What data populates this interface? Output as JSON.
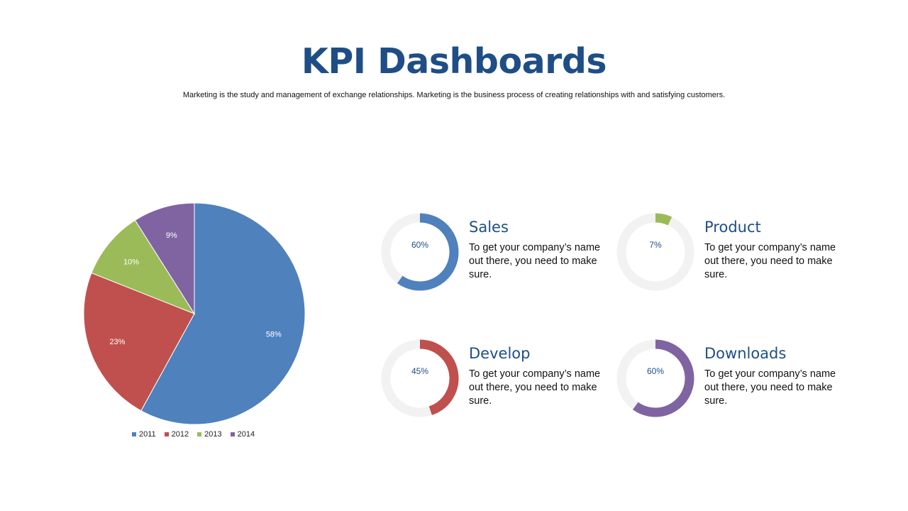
{
  "header": {
    "title": "KPI Dashboards",
    "subtitle": "Marketing is the study and management of exchange relationships. Marketing is the business process of creating relationships with and satisfying customers."
  },
  "chart_data": [
    {
      "type": "pie",
      "categories": [
        "2011",
        "2012",
        "2013",
        "2014"
      ],
      "values": [
        58,
        23,
        10,
        9
      ],
      "labels": [
        "58%",
        "23%",
        "10%",
        "9%"
      ],
      "colors": [
        "#4f81bd",
        "#c0504d",
        "#9bbb59",
        "#8064a2"
      ],
      "legend_position": "bottom"
    },
    {
      "type": "donut-kpis",
      "items": [
        {
          "title": "Sales",
          "value": 60,
          "label": "60%",
          "color": "#4f81bd",
          "description": "To get your company’s name out there, you need to make sure."
        },
        {
          "title": "Product",
          "value": 7,
          "label": "7%",
          "color": "#9bbb59",
          "description": "To get your company’s name out there, you need to make sure."
        },
        {
          "title": "Develop",
          "value": 45,
          "label": "45%",
          "color": "#c0504d",
          "description": "To get your company’s name out there, you need to make sure."
        },
        {
          "title": "Downloads",
          "value": 60,
          "label": "60%",
          "color": "#8064a2",
          "description": "To get your company’s name out there, you need to make sure."
        }
      ],
      "track_color": "#f2f2f2"
    }
  ]
}
